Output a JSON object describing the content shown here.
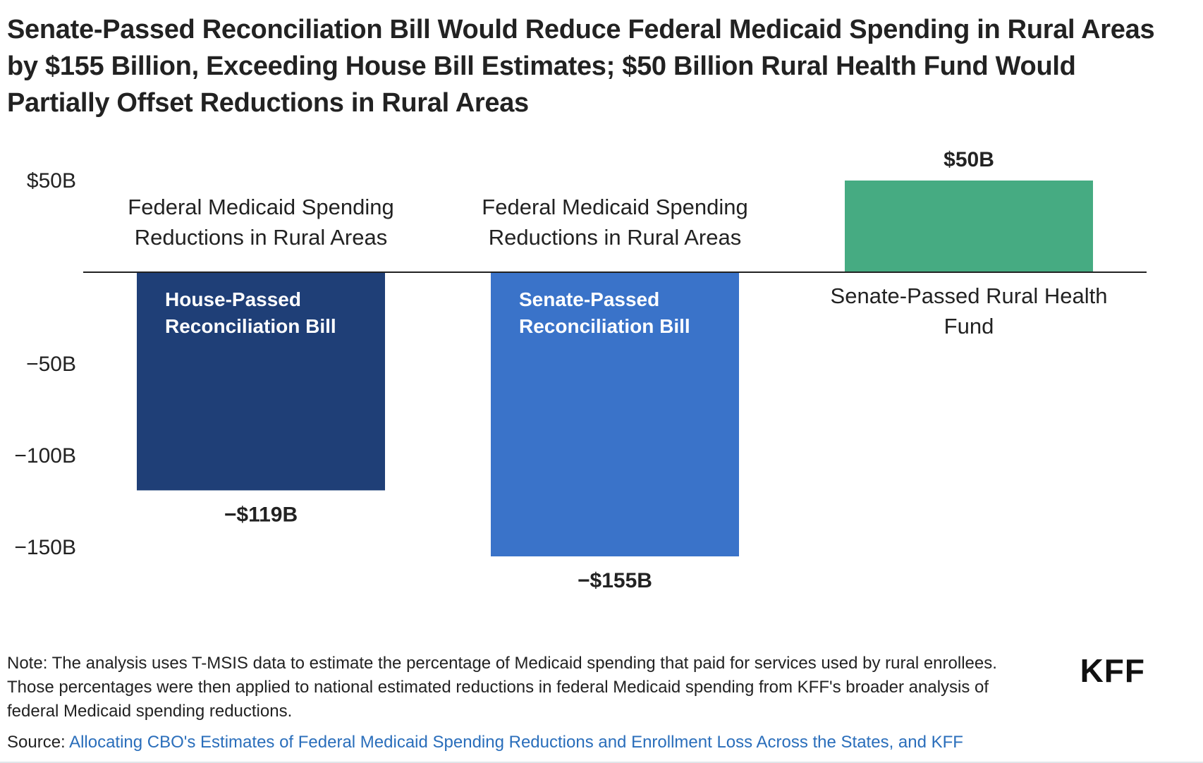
{
  "title": "Senate-Passed Reconciliation Bill Would Reduce Federal Medicaid Spending in Rural Areas by $155 Billion, Exceeding House Bill Estimates; $50 Billion Rural Health Fund Would Partially Offset Reductions in Rural Areas",
  "note": "Note: The analysis uses T-MSIS data to estimate the percentage of Medicaid spending that paid for services used by rural enrollees. Those percentages were then applied to national estimated reductions in federal Medicaid spending from KFF's broader analysis of federal Medicaid spending reductions.",
  "source": {
    "label": "Source: ",
    "link_text": "Allocating CBO's Estimates of Federal Medicaid Spending Reductions and Enrollment Loss Across the States, and KFF"
  },
  "logo": "KFF",
  "chart_data": {
    "type": "bar",
    "title": "Senate-Passed Reconciliation Bill Would Reduce Federal Medicaid Spending in Rural Areas by $155 Billion, Exceeding House Bill Estimates; $50 Billion Rural Health Fund Would Partially Offset Reductions in Rural Areas",
    "xlabel": "",
    "ylabel": "",
    "ylim": [
      -150,
      50
    ],
    "y_ticks": [
      {
        "value": 50,
        "label": "$50B"
      },
      {
        "value": -50,
        "label": "−50B"
      },
      {
        "value": -100,
        "label": "−100B"
      },
      {
        "value": -150,
        "label": "−150B"
      }
    ],
    "grid": false,
    "legend": "none",
    "bars": [
      {
        "category_label": [
          "Federal Medicaid Spending",
          "Reductions in Rural Areas"
        ],
        "inner_label": [
          "House-Passed",
          "Reconciliation Bill"
        ],
        "value": -119,
        "value_label": "−$119B",
        "color": "#1f3f77"
      },
      {
        "category_label": [
          "Federal Medicaid Spending",
          "Reductions in Rural Areas"
        ],
        "inner_label": [
          "Senate-Passed",
          "Reconciliation Bill"
        ],
        "value": -155,
        "value_label": "−$155B",
        "color": "#3a73c9"
      },
      {
        "category_label": [
          "Senate-Passed Rural Health",
          "Fund"
        ],
        "inner_label": [],
        "value": 50,
        "value_label": "$50B",
        "color": "#46ab82"
      }
    ]
  }
}
